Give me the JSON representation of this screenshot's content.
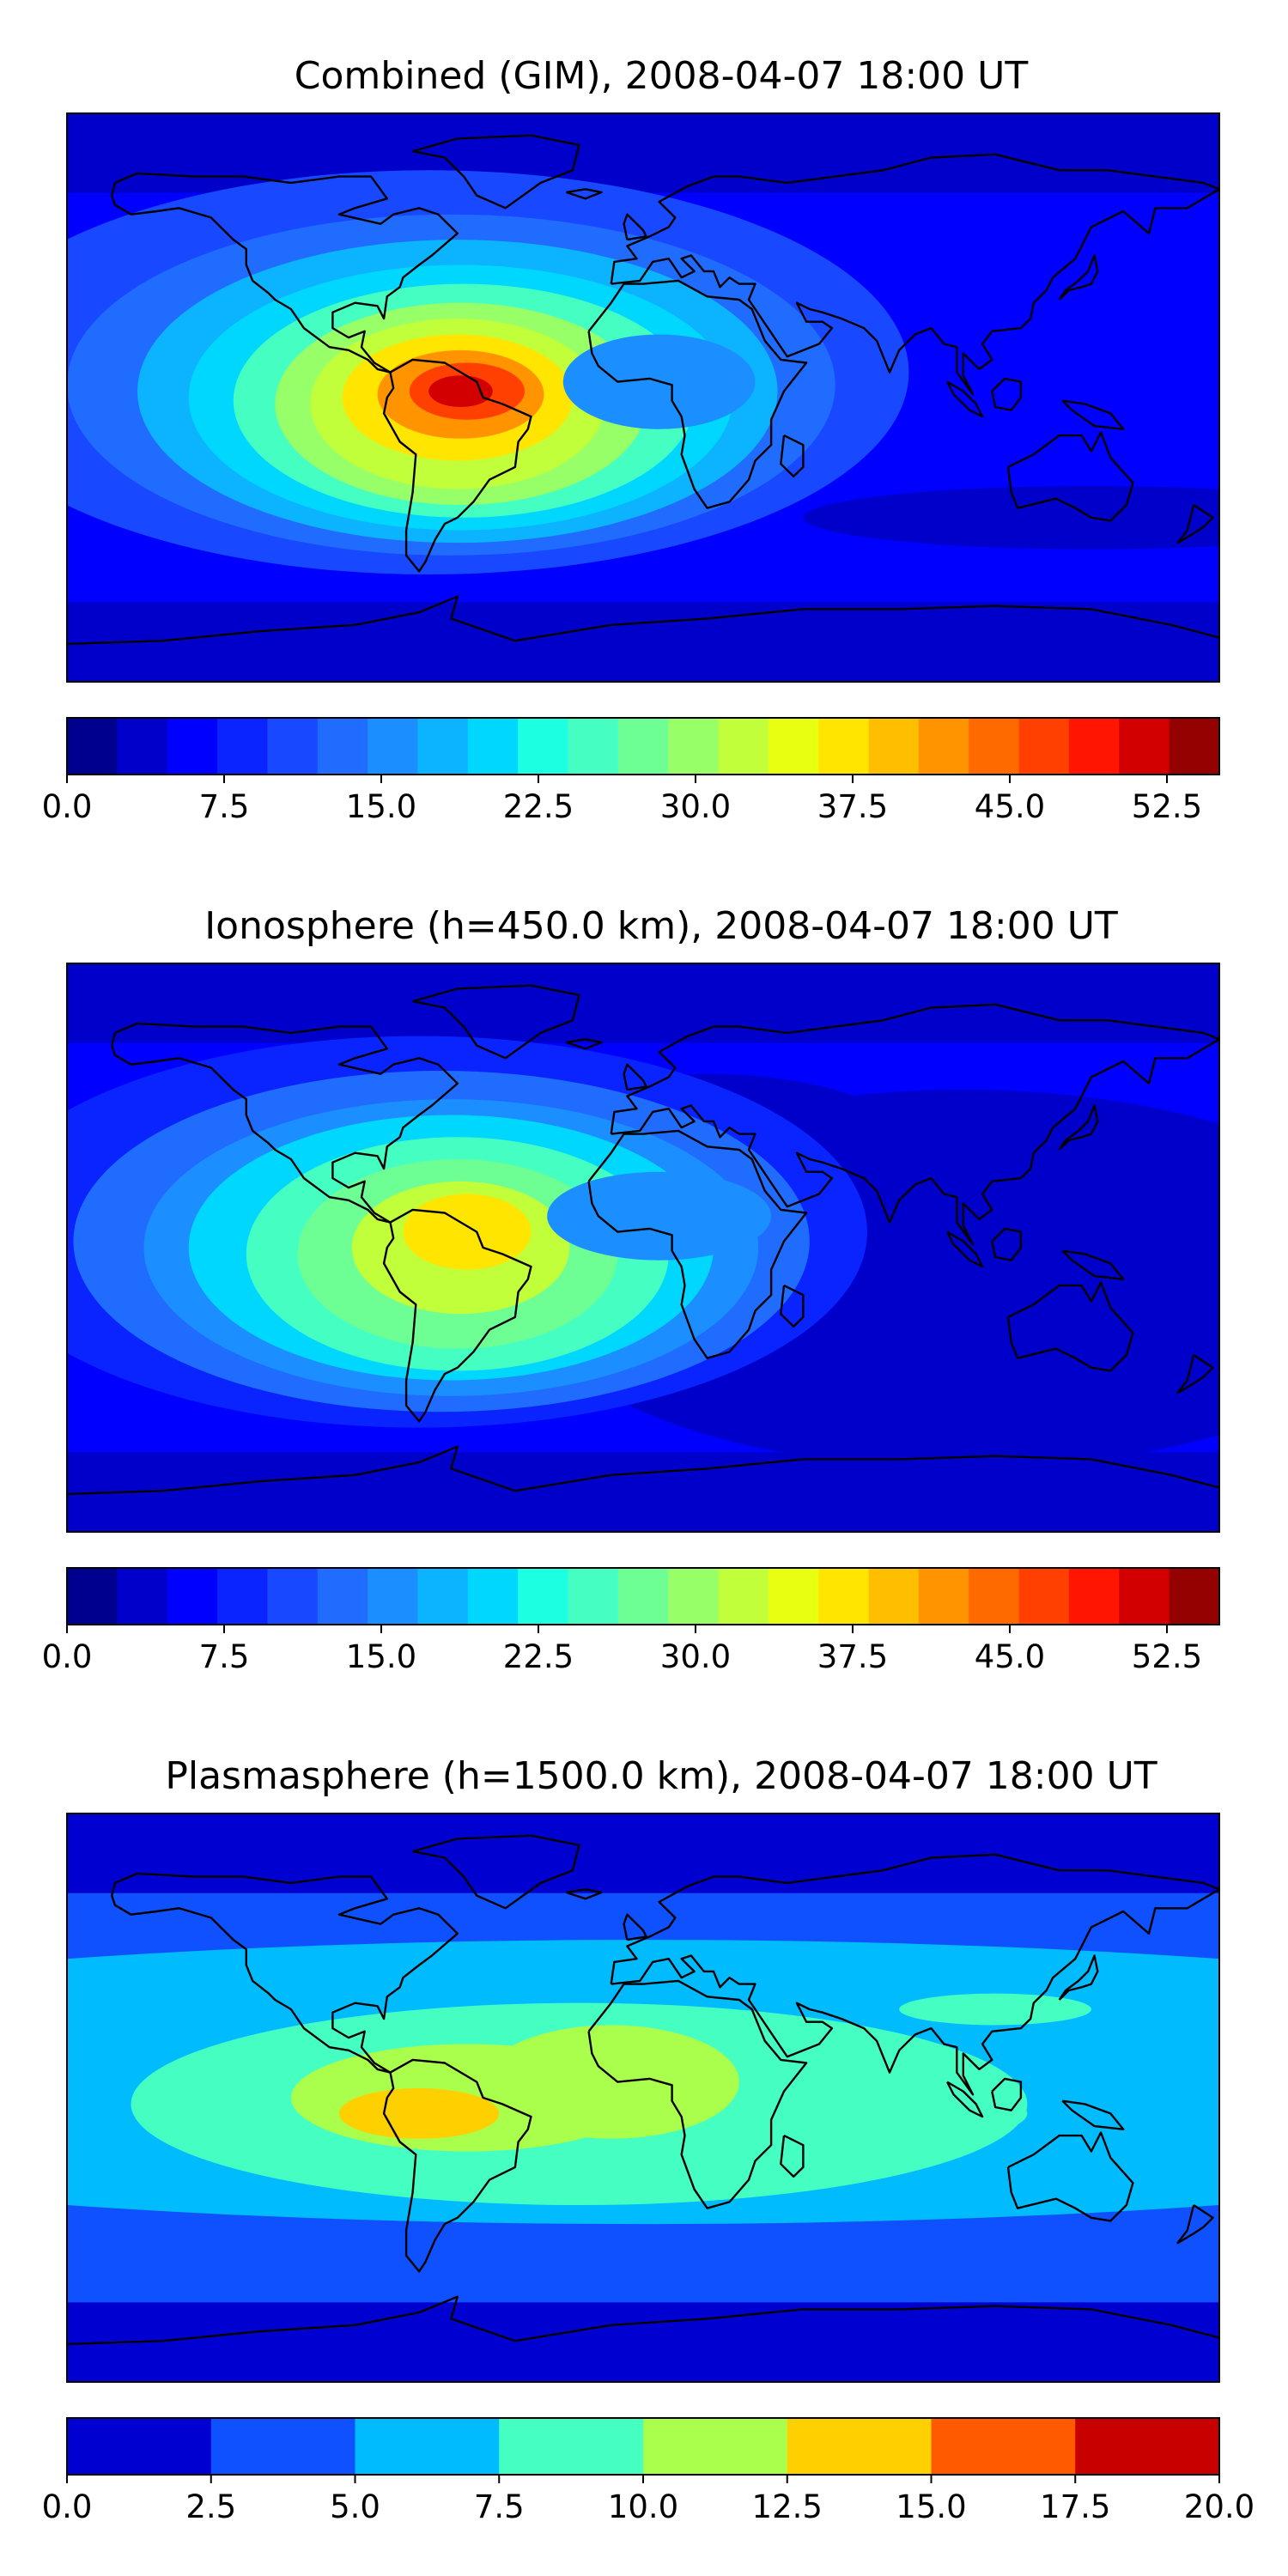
{
  "chart_data": [
    {
      "type": "heatmap",
      "title": "Combined (GIM), 2008-04-07 18:00 UT",
      "lon_range": [
        -180,
        180
      ],
      "lat_range": [
        -90,
        90
      ],
      "colorbar": {
        "ticks": [
          "0.0",
          "7.5",
          "15.0",
          "22.5",
          "30.0",
          "37.5",
          "45.0",
          "52.5"
        ],
        "range": [
          0,
          55
        ],
        "colors": [
          "#00008f",
          "#0000cb",
          "#0000ff",
          "#0a24ff",
          "#1848ff",
          "#1f6cff",
          "#1b8fff",
          "#0cb3ff",
          "#00d7ff",
          "#1cffe0",
          "#45ffc2",
          "#6dff94",
          "#97ff67",
          "#c0ff3a",
          "#e8ff12",
          "#ffe500",
          "#ffbe00",
          "#ff9400",
          "#ff6a00",
          "#ff4000",
          "#ff1500",
          "#d20000",
          "#950000"
        ]
      },
      "blobs": [
        {
          "lon": -67,
          "lat": 8,
          "rx": 150,
          "ry": 64,
          "value": 10
        },
        {
          "lon": -60,
          "lat": 4,
          "rx": 120,
          "ry": 54,
          "value": 13
        },
        {
          "lon": -58,
          "lat": 2,
          "rx": 100,
          "ry": 48,
          "value": 17
        },
        {
          "lon": -57,
          "lat": 0,
          "rx": 85,
          "ry": 42,
          "value": 21
        },
        {
          "lon": -56,
          "lat": -1,
          "rx": 72,
          "ry": 37,
          "value": 25
        },
        {
          "lon": -57,
          "lat": -2,
          "rx": 58,
          "ry": 32,
          "value": 29
        },
        {
          "lon": -58,
          "lat": -2,
          "rx": 46,
          "ry": 27,
          "value": 33
        },
        {
          "lon": -58,
          "lat": 0,
          "rx": 36,
          "ry": 20,
          "value": 37
        },
        {
          "lon": -57,
          "lat": 1,
          "rx": 26,
          "ry": 14,
          "value": 42
        },
        {
          "lon": -55,
          "lat": 2,
          "rx": 18,
          "ry": 9,
          "value": 47
        },
        {
          "lon": -57,
          "lat": 2,
          "rx": 10,
          "ry": 5,
          "value": 52
        },
        {
          "lon": 5,
          "lat": 5,
          "rx": 30,
          "ry": 15,
          "value": 16
        },
        {
          "lon": 140,
          "lat": -38,
          "rx": 90,
          "ry": 10,
          "value": 4
        }
      ]
    },
    {
      "type": "heatmap",
      "title": "Ionosphere  (h=450.0 km), 2008-04-07 18:00 UT",
      "lon_range": [
        -180,
        180
      ],
      "lat_range": [
        -90,
        90
      ],
      "colorbar": {
        "ticks": [
          "0.0",
          "7.5",
          "15.0",
          "22.5",
          "30.0",
          "37.5",
          "45.0",
          "52.5"
        ],
        "range": [
          0,
          55
        ],
        "colors": [
          "#00008f",
          "#0000cb",
          "#0000ff",
          "#0a24ff",
          "#1848ff",
          "#1f6cff",
          "#1b8fff",
          "#0cb3ff",
          "#00d7ff",
          "#1cffe0",
          "#45ffc2",
          "#6dff94",
          "#97ff67",
          "#c0ff3a",
          "#e8ff12",
          "#ffe500",
          "#ffbe00",
          "#ff9400",
          "#ff6a00",
          "#ff4000",
          "#ff1500",
          "#d20000",
          "#950000"
        ]
      },
      "blobs": [
        {
          "lon": 100,
          "lat": -10,
          "rx": 140,
          "ry": 60,
          "value": 3
        },
        {
          "lon": 20,
          "lat": 35,
          "rx": 60,
          "ry": 20,
          "value": 3
        },
        {
          "lon": -70,
          "lat": 5,
          "rx": 140,
          "ry": 62,
          "value": 8
        },
        {
          "lon": -63,
          "lat": 2,
          "rx": 115,
          "ry": 54,
          "value": 12
        },
        {
          "lon": -60,
          "lat": 0,
          "rx": 96,
          "ry": 47,
          "value": 16
        },
        {
          "lon": -60,
          "lat": 0,
          "rx": 82,
          "ry": 42,
          "value": 20
        },
        {
          "lon": -58,
          "lat": -2,
          "rx": 66,
          "ry": 37,
          "value": 24
        },
        {
          "lon": -58,
          "lat": -2,
          "rx": 50,
          "ry": 30,
          "value": 28
        },
        {
          "lon": -57,
          "lat": 0,
          "rx": 34,
          "ry": 21,
          "value": 33
        },
        {
          "lon": -55,
          "lat": 5,
          "rx": 20,
          "ry": 12,
          "value": 37
        },
        {
          "lon": 5,
          "lat": 10,
          "rx": 35,
          "ry": 14,
          "value": 16
        }
      ]
    },
    {
      "type": "heatmap",
      "title": "Plasmasphere (h=1500.0 km), 2008-04-07 18:00 UT",
      "lon_range": [
        -180,
        180
      ],
      "lat_range": [
        -90,
        90
      ],
      "colorbar": {
        "ticks": [
          "0.0",
          "2.5",
          "5.0",
          "7.5",
          "10.0",
          "12.5",
          "15.0",
          "17.5",
          "20.0"
        ],
        "range": [
          0,
          20
        ],
        "colors": [
          "#0000d0",
          "#0f50ff",
          "#00bcff",
          "#45ffc2",
          "#aaff4d",
          "#ffd000",
          "#ff5a00",
          "#c80000"
        ]
      },
      "blobs": [
        {
          "lon": 0,
          "lat": 5,
          "rx": 360,
          "ry": 45,
          "value": 6
        },
        {
          "lon": -20,
          "lat": -2,
          "rx": 140,
          "ry": 32,
          "value": 9
        },
        {
          "lon": 70,
          "lat": -5,
          "rx": 50,
          "ry": 10,
          "value": 9
        },
        {
          "lon": 110,
          "lat": 28,
          "rx": 30,
          "ry": 5,
          "value": 9
        },
        {
          "lon": -55,
          "lat": 0,
          "rx": 55,
          "ry": 17,
          "value": 11
        },
        {
          "lon": -10,
          "lat": 5,
          "rx": 40,
          "ry": 18,
          "value": 11
        },
        {
          "lon": -70,
          "lat": -5,
          "rx": 25,
          "ry": 8,
          "value": 13.5
        }
      ]
    }
  ]
}
